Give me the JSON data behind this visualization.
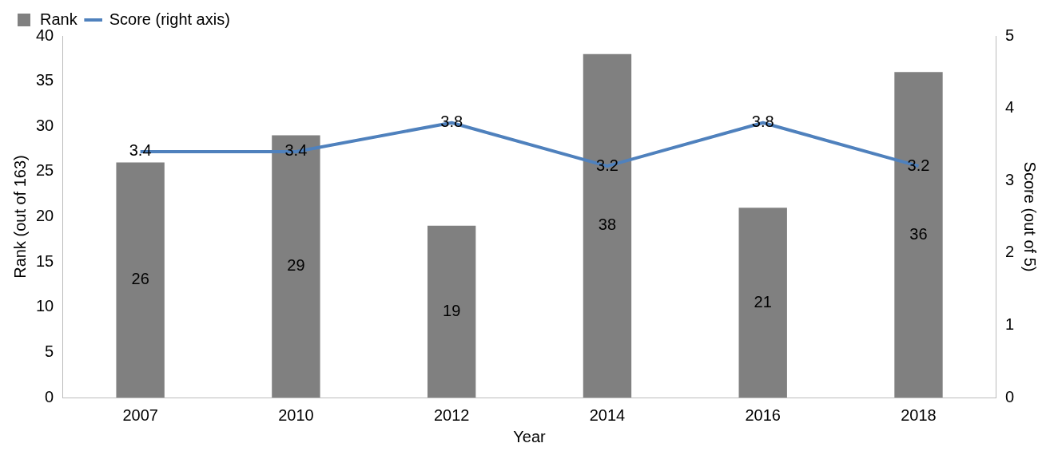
{
  "chart_data": {
    "type": "bar",
    "categories": [
      "2007",
      "2010",
      "2012",
      "2014",
      "2016",
      "2018"
    ],
    "series": [
      {
        "name": "Rank",
        "color": "#808080",
        "values": [
          26,
          29,
          19,
          38,
          21,
          36
        ]
      },
      {
        "name": "Score (right axis)",
        "type": "line",
        "axis": "y2",
        "color": "#4f81bd",
        "values": [
          3.4,
          3.4,
          3.8,
          3.2,
          3.8,
          3.2
        ]
      }
    ],
    "xlabel": "Year",
    "ylabel": "Rank (out of 163)",
    "y2label": "Score (out of 5)",
    "ylim": [
      0,
      40
    ],
    "yticks": [
      0,
      5,
      10,
      15,
      20,
      25,
      30,
      35,
      40
    ],
    "y2lim": [
      0,
      5
    ],
    "y2ticks": [
      0,
      1,
      2,
      3,
      4,
      5
    ],
    "data_labels": true,
    "legend": "top left",
    "grid": false,
    "marker": "none",
    "line_style": "solid"
  }
}
